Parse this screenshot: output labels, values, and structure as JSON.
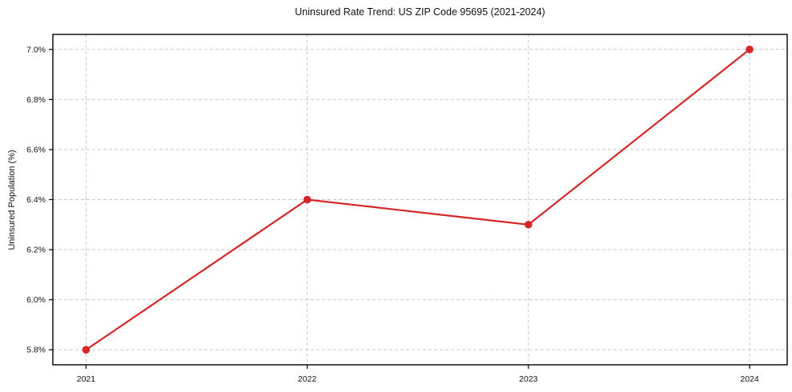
{
  "chart_data": {
    "type": "line",
    "title": "Uninsured Rate Trend: US ZIP Code 95695 (2021-2024)",
    "xlabel": "",
    "ylabel": "Uninsured Population (%)",
    "x": [
      2021,
      2022,
      2023,
      2024
    ],
    "values": [
      5.8,
      6.4,
      6.3,
      7.0
    ],
    "xticks": [
      2021,
      2022,
      2023,
      2024
    ],
    "xtick_labels": [
      "2021",
      "2022",
      "2023",
      "2024"
    ],
    "yticks": [
      5.8,
      6.0,
      6.2,
      6.4,
      6.6,
      6.8,
      7.0
    ],
    "ytick_labels": [
      "5.8%",
      "6.0%",
      "6.2%",
      "6.4%",
      "6.6%",
      "6.8%",
      "7.0%"
    ],
    "xlim": [
      2020.85,
      2024.17
    ],
    "ylim": [
      5.74,
      7.06
    ],
    "grid": true,
    "legend": "none",
    "line_color": "#d62728",
    "marker": "circle",
    "grid_color": "#c9c9c9",
    "border_color": "#000000"
  }
}
